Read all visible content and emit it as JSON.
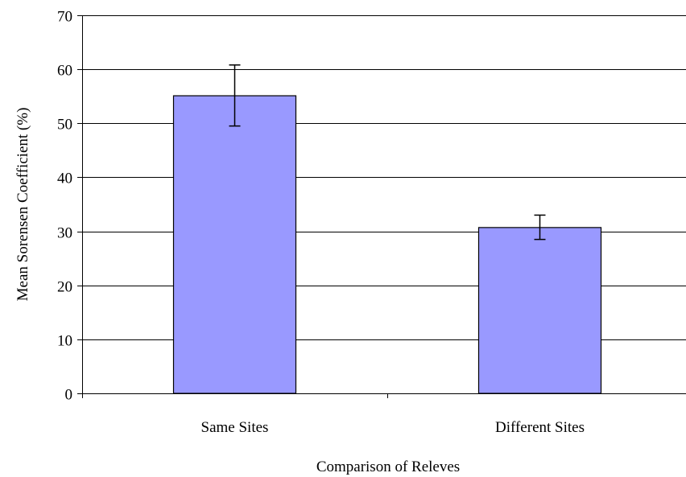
{
  "chart_data": {
    "type": "bar",
    "categories": [
      "Same Sites",
      "Different Sites"
    ],
    "values": [
      55.1,
      30.7
    ],
    "error_bars": [
      {
        "low": 49.5,
        "high": 60.8
      },
      {
        "low": 28.5,
        "high": 33.0
      }
    ],
    "title": "",
    "xlabel": "Comparison of Releves",
    "ylabel": "Mean Sorensen Coefficient (%)",
    "ylim": [
      0,
      70
    ],
    "yticks": [
      0,
      10,
      20,
      30,
      40,
      50,
      60,
      70
    ],
    "grid": true,
    "legend": "none",
    "colors": {
      "bar_fill": "#9999ff",
      "bar_stroke": "#000000",
      "grid": "#000000",
      "axis": "#000000",
      "background": "#ffffff"
    }
  }
}
